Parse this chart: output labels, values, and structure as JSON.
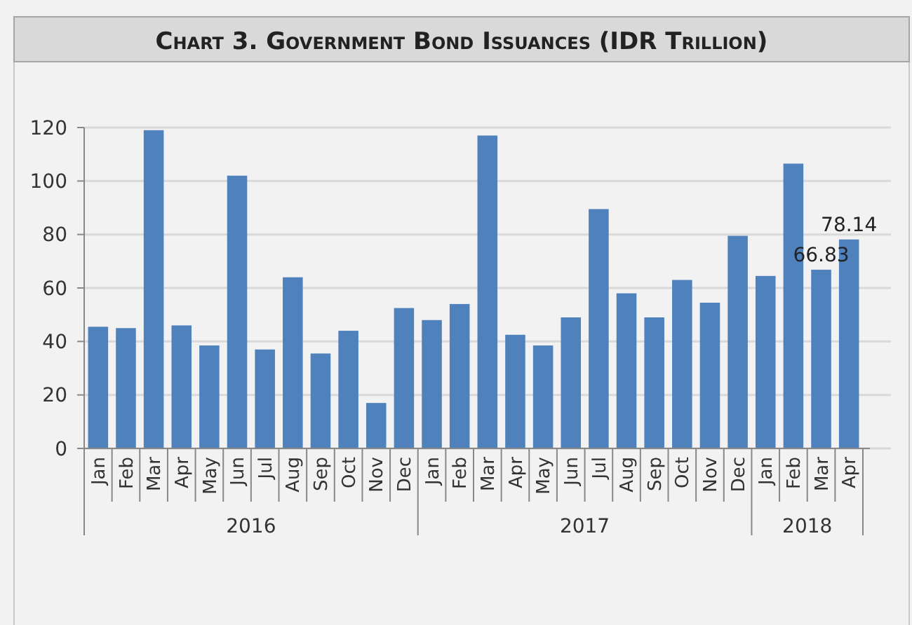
{
  "chart_data": {
    "type": "bar",
    "title": "Chart 3. Government Bond Issuances (IDR Trillion)",
    "categories": [
      "Jan",
      "Feb",
      "Mar",
      "Apr",
      "May",
      "Jun",
      "Jul",
      "Aug",
      "Sep",
      "Oct",
      "Nov",
      "Dec",
      "Jan",
      "Feb",
      "Mar",
      "Apr",
      "May",
      "Jun",
      "Jul",
      "Aug",
      "Sep",
      "Oct",
      "Nov",
      "Dec",
      "Jan",
      "Feb",
      "Mar",
      "Apr"
    ],
    "values": [
      45.5,
      45,
      119,
      46,
      38.5,
      102,
      37,
      64,
      35.5,
      44,
      17,
      52.5,
      48,
      54,
      117,
      42.5,
      38.5,
      49,
      89.5,
      58,
      49,
      63,
      54.5,
      79.5,
      64.5,
      106.5,
      66.83,
      78.14
    ],
    "value_labels": [
      null,
      null,
      null,
      null,
      null,
      null,
      null,
      null,
      null,
      null,
      null,
      null,
      null,
      null,
      null,
      null,
      null,
      null,
      null,
      null,
      null,
      null,
      null,
      null,
      null,
      null,
      "66.83",
      "78.14"
    ],
    "annotations": [
      "2016",
      "2017",
      "2018"
    ],
    "color": "#4f81bd",
    "ylim": [
      0,
      120
    ],
    "yticks": [
      0,
      20,
      40,
      60,
      80,
      100,
      120
    ],
    "grid": "y"
  }
}
